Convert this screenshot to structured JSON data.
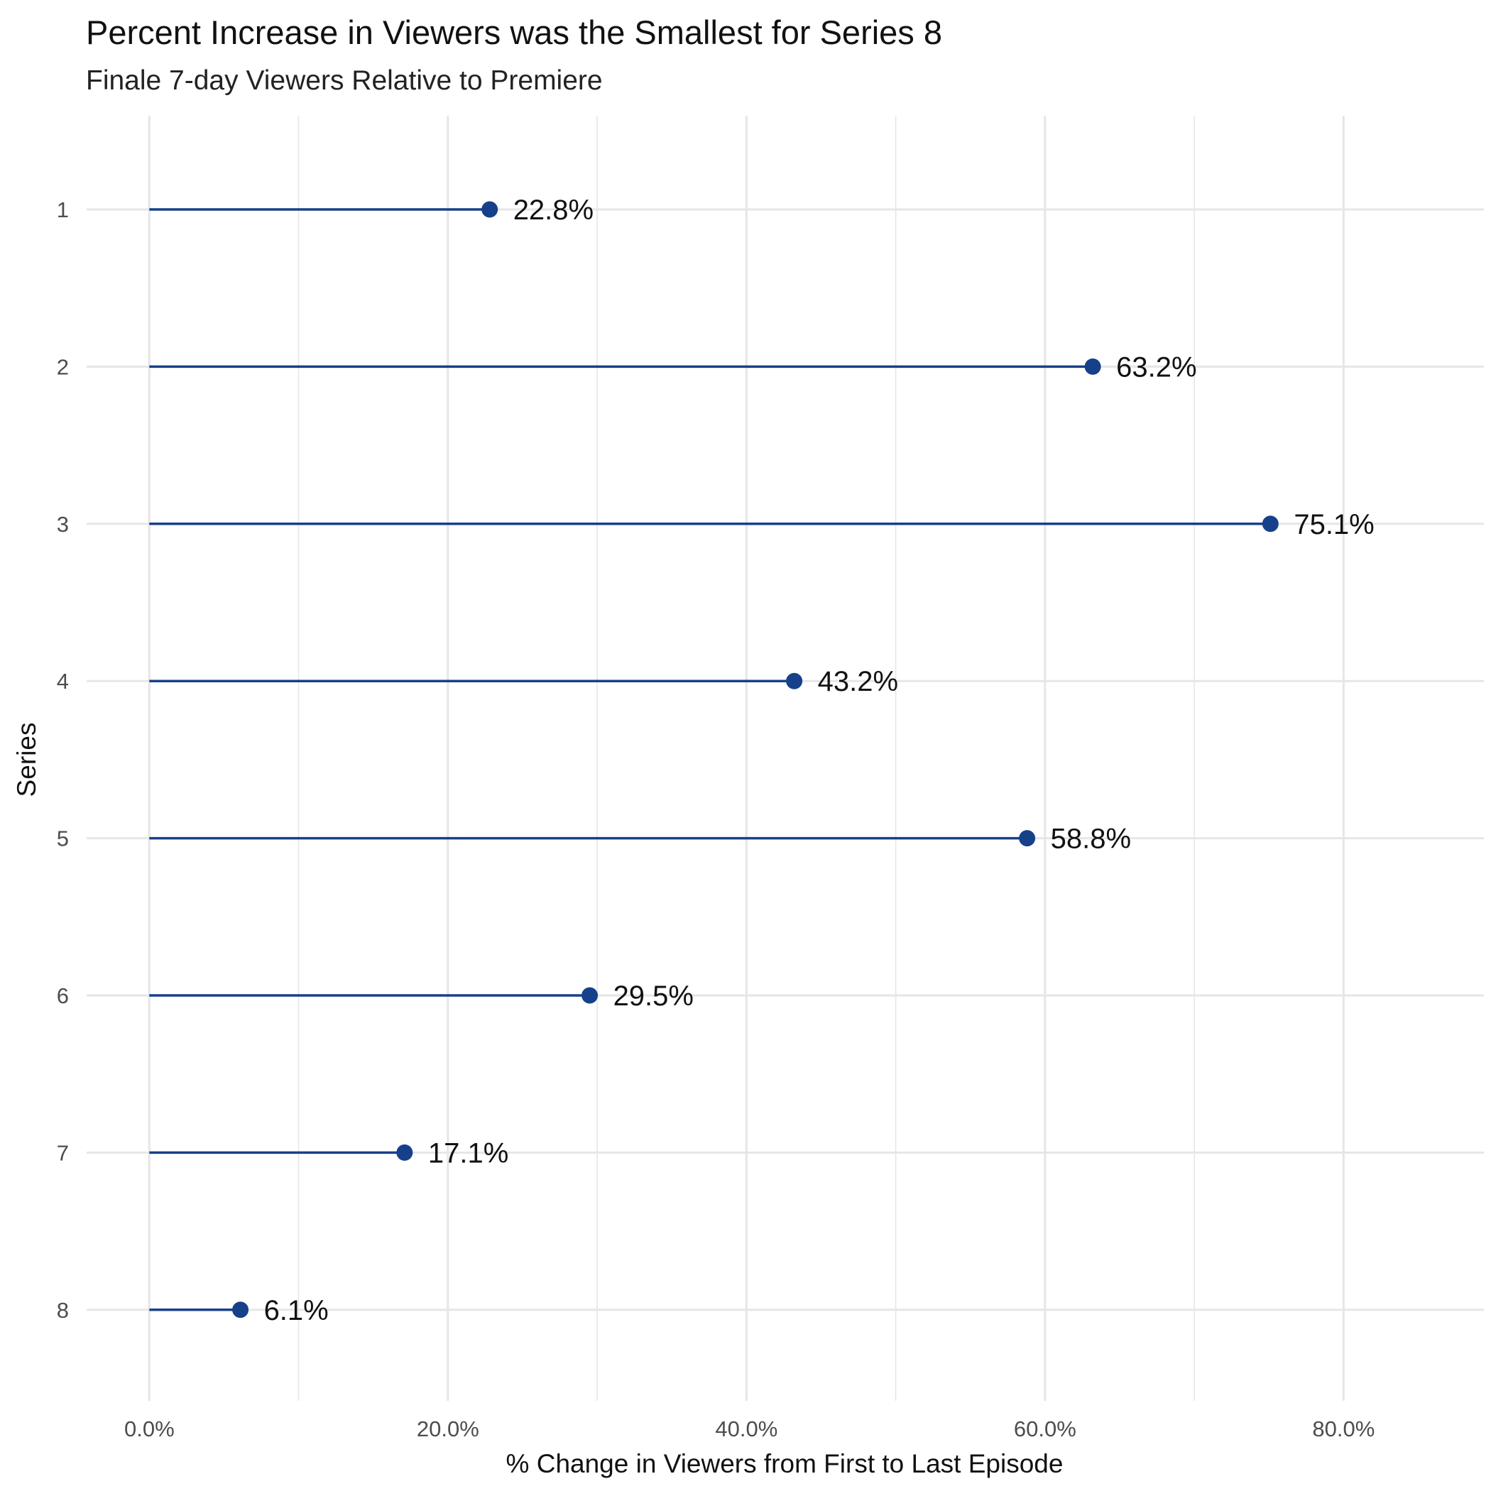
{
  "chart_data": {
    "type": "lollipop",
    "title": "Percent Increase in Viewers was the Smallest for Series 8",
    "subtitle": "Finale 7-day Viewers Relative to Premiere",
    "xlabel": "% Change in Viewers from First to Last Episode",
    "ylabel": "Series",
    "categories": [
      "1",
      "2",
      "3",
      "4",
      "5",
      "6",
      "7",
      "8"
    ],
    "values": [
      22.8,
      63.2,
      75.1,
      43.2,
      58.8,
      29.5,
      17.1,
      6.1
    ],
    "value_labels": [
      "22.8%",
      "63.2%",
      "75.1%",
      "43.2%",
      "58.8%",
      "29.5%",
      "17.1%",
      "6.1%"
    ],
    "x_ticks": [
      0,
      20,
      40,
      60,
      80
    ],
    "x_tick_labels": [
      "0.0%",
      "20.0%",
      "40.0%",
      "60.0%",
      "80.0%"
    ],
    "xlim": [
      -4.2,
      89.4
    ],
    "grid": true,
    "legend": "none",
    "colors": {
      "series": "#17408b",
      "grid": "#e6e6e6",
      "text": "#111111",
      "tick_text": "#4d4d4d"
    }
  }
}
